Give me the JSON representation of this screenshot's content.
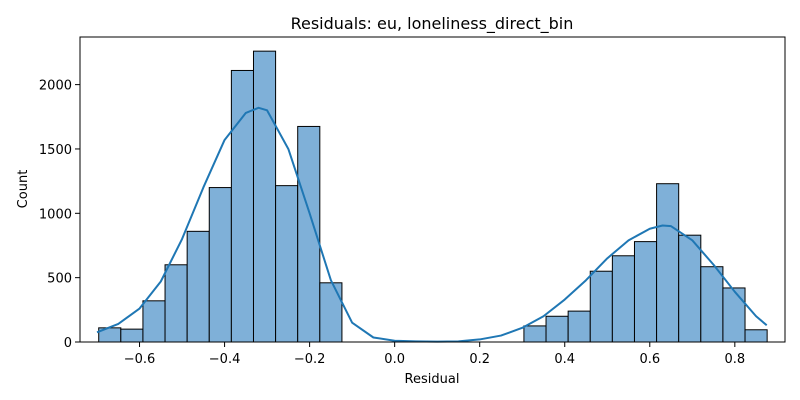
{
  "chart_data": {
    "type": "bar",
    "subtype": "histogram-with-kde",
    "title": "Residuals: eu, loneliness_direct_bin",
    "xlabel": "Residual",
    "ylabel": "Count",
    "xlim": [
      -0.74,
      0.918
    ],
    "ylim": [
      0,
      2370
    ],
    "xticks": [
      -0.6,
      -0.4,
      -0.2,
      0.0,
      0.2,
      0.4,
      0.6,
      0.8
    ],
    "xtick_labels": [
      "−0.6",
      "−0.4",
      "−0.2",
      "0.0",
      "0.2",
      "0.4",
      "0.6",
      "0.8"
    ],
    "yticks": [
      0,
      500,
      1000,
      1500,
      2000
    ],
    "ytick_labels": [
      "0",
      "500",
      "1000",
      "1500",
      "2000"
    ],
    "grid": false,
    "bar_color": "#7fb0d8",
    "bar_edge_color": "#000000",
    "kde_color": "#1f77b4",
    "bins": [
      {
        "x0": -0.696,
        "x1": -0.644,
        "count": 110
      },
      {
        "x0": -0.644,
        "x1": -0.592,
        "count": 100
      },
      {
        "x0": -0.592,
        "x1": -0.54,
        "count": 320
      },
      {
        "x0": -0.54,
        "x1": -0.488,
        "count": 600
      },
      {
        "x0": -0.488,
        "x1": -0.436,
        "count": 860
      },
      {
        "x0": -0.436,
        "x1": -0.384,
        "count": 1200
      },
      {
        "x0": -0.384,
        "x1": -0.332,
        "count": 2110
      },
      {
        "x0": -0.332,
        "x1": -0.28,
        "count": 2260
      },
      {
        "x0": -0.28,
        "x1": -0.228,
        "count": 1215
      },
      {
        "x0": -0.228,
        "x1": -0.176,
        "count": 1675
      },
      {
        "x0": -0.176,
        "x1": -0.124,
        "count": 460
      },
      {
        "x0": 0.304,
        "x1": 0.356,
        "count": 125
      },
      {
        "x0": 0.356,
        "x1": 0.408,
        "count": 200
      },
      {
        "x0": 0.408,
        "x1": 0.46,
        "count": 240
      },
      {
        "x0": 0.46,
        "x1": 0.512,
        "count": 550
      },
      {
        "x0": 0.512,
        "x1": 0.564,
        "count": 670
      },
      {
        "x0": 0.564,
        "x1": 0.616,
        "count": 780
      },
      {
        "x0": 0.616,
        "x1": 0.668,
        "count": 1230
      },
      {
        "x0": 0.668,
        "x1": 0.72,
        "count": 830
      },
      {
        "x0": 0.72,
        "x1": 0.772,
        "count": 585
      },
      {
        "x0": 0.772,
        "x1": 0.824,
        "count": 420
      },
      {
        "x0": 0.824,
        "x1": 0.876,
        "count": 95
      }
    ],
    "kde": {
      "x": [
        -0.7,
        -0.65,
        -0.6,
        -0.55,
        -0.5,
        -0.45,
        -0.4,
        -0.35,
        -0.32,
        -0.3,
        -0.25,
        -0.2,
        -0.15,
        -0.1,
        -0.05,
        0.0,
        0.05,
        0.1,
        0.15,
        0.2,
        0.25,
        0.3,
        0.35,
        0.4,
        0.45,
        0.5,
        0.55,
        0.6,
        0.63,
        0.65,
        0.7,
        0.75,
        0.8,
        0.85,
        0.875
      ],
      "y": [
        75,
        140,
        260,
        470,
        800,
        1200,
        1570,
        1780,
        1820,
        1800,
        1500,
        1000,
        480,
        150,
        35,
        10,
        5,
        3,
        5,
        20,
        50,
        110,
        200,
        330,
        480,
        650,
        790,
        880,
        905,
        900,
        790,
        600,
        390,
        200,
        130
      ]
    }
  }
}
